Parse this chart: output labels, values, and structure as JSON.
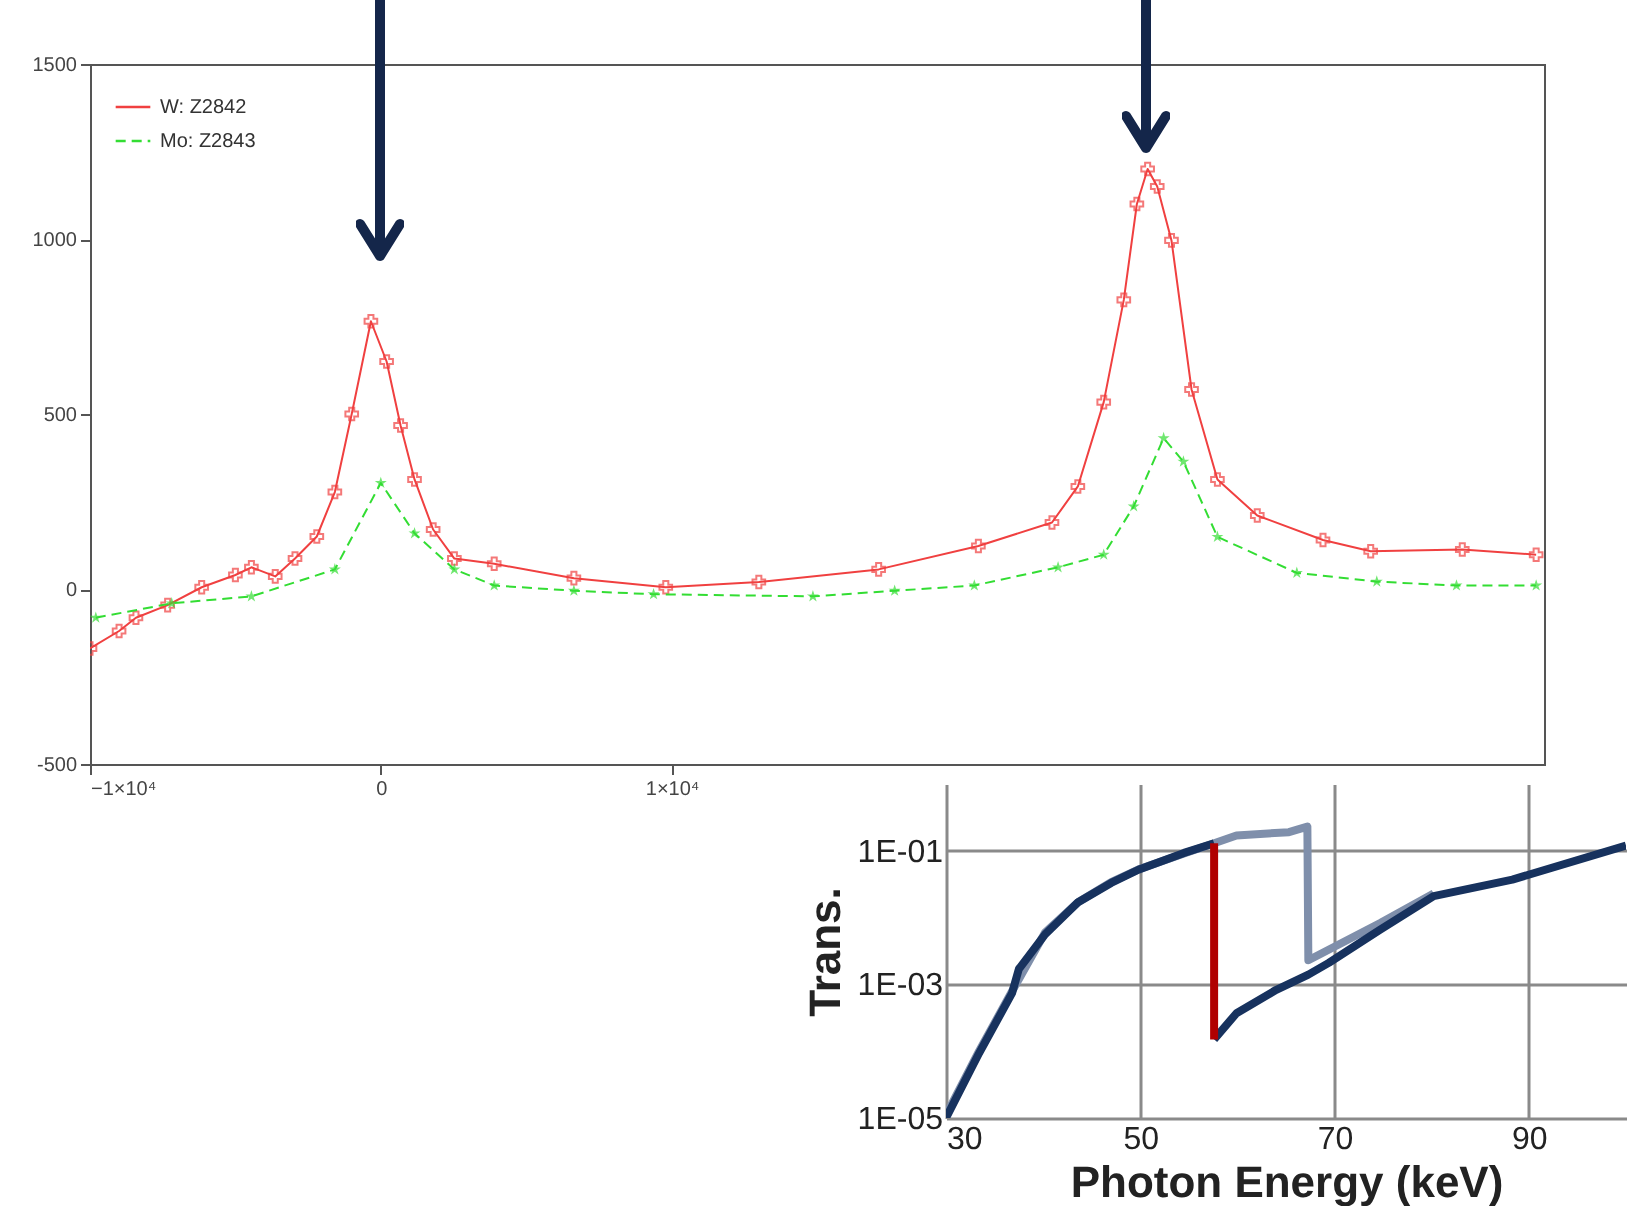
{
  "chart_data": [
    {
      "type": "line",
      "x": [
        -10000,
        -9000,
        -8420,
        -7330,
        -6160,
        -5000,
        -4450,
        -3630,
        -2950,
        -2200,
        -1580,
        -1000,
        -340,
        200,
        680,
        1160,
        1800,
        2530,
        3900,
        6640,
        9800,
        13000,
        17120,
        20550,
        23080,
        23970,
        24860,
        25550,
        26000,
        26370,
        26700,
        27190,
        27880,
        28770,
        30140,
        32400,
        34040,
        37190,
        39730
      ],
      "series": [
        {
          "name": "W: Z2842",
          "color": "#f04040",
          "marker": "cross",
          "line_style": "solid",
          "values": [
            -170,
            -120,
            -82,
            -46,
            5,
            40,
            62,
            36,
            87,
            150,
            277,
            500,
            765,
            650,
            467,
            313,
            170,
            87,
            72,
            31,
            5,
            20,
            56,
            123,
            190,
            293,
            534,
            826,
            1100,
            1200,
            1150,
            996,
            570,
            313,
            210,
            140,
            108,
            113,
            98
          ]
        },
        {
          "name": "Mo: Z2843",
          "color": "#33dd33",
          "marker": "star",
          "line_style": "dashed",
          "x": [
            -9800,
            -7190,
            -4450,
            -1580,
            0,
            1160,
            2530,
            3900,
            6640,
            9380,
            14860,
            17670,
            20410,
            23290,
            24860,
            25890,
            26920,
            27600,
            28770,
            31500,
            34250,
            36990,
            39730
          ],
          "values": [
            -82,
            -41,
            -21,
            56,
            303,
            159,
            56,
            10,
            -5,
            -15,
            -21,
            -5,
            10,
            62,
            98,
            236,
            431,
            364,
            149,
            46,
            21,
            10,
            10
          ]
        }
      ],
      "xlim": [
        -10000,
        40000
      ],
      "xticks": [
        {
          "value": -10000,
          "label": "−1×10⁴"
        },
        0,
        {
          "value": 10000,
          "label": "1×10⁴"
        }
      ],
      "ylim": [
        -500,
        1500
      ],
      "yticks": [
        -500,
        0,
        500,
        1000,
        1500
      ],
      "grid": false,
      "legend": "top left"
    },
    {
      "type": "line",
      "xlabel": "Photon Energy (keV)",
      "ylabel": "Trans.",
      "log": "y",
      "series": [
        {
          "color": "#7f8fab",
          "x": [
            30,
            33.4,
            36.8,
            40.2,
            43.6,
            47,
            50,
            54.5,
            57.6,
            59.9,
            65.3,
            67.2,
            67.3,
            74.7,
            80.2
          ],
          "values": [
            1.1e-05,
            0.0001,
            0.00079,
            0.006,
            0.017,
            0.034,
            0.054,
            0.091,
            0.13,
            0.17,
            0.19,
            0.23,
            0.0023,
            0.0083,
            0.023
          ]
        },
        {
          "color": "#17325e",
          "x": [
            30,
            33.4,
            36.8,
            37.5,
            40.2,
            43.6,
            47,
            49.8,
            54.5,
            57.6
          ],
          "values": [
            1e-05,
            9.3e-05,
            0.00074,
            0.0017,
            0.0056,
            0.017,
            0.033,
            0.052,
            0.093,
            0.13
          ]
        },
        {
          "color": "#17325e",
          "x": [
            57.6,
            59.9,
            64,
            67.3,
            69.4,
            74.7,
            80.2,
            88.3,
            100
          ],
          "values": [
            0.00015,
            0.00037,
            0.00083,
            0.0014,
            0.0021,
            0.0066,
            0.021,
            0.037,
            0.12
          ]
        },
        {
          "color": "#b00000",
          "x": [
            57.6,
            57.6
          ],
          "values": [
            0.13,
            0.00015
          ]
        }
      ],
      "xlim": [
        30,
        100
      ],
      "xticks": [
        30,
        50,
        70,
        90
      ],
      "ylim": [
        1e-05,
        1
      ],
      "yticks": [
        {
          "value": 1e-05,
          "label": "1E-05"
        },
        {
          "value": 0.001,
          "label": "1E-03"
        },
        {
          "value": 0.1,
          "label": "1E-01"
        }
      ],
      "grid": true
    }
  ]
}
